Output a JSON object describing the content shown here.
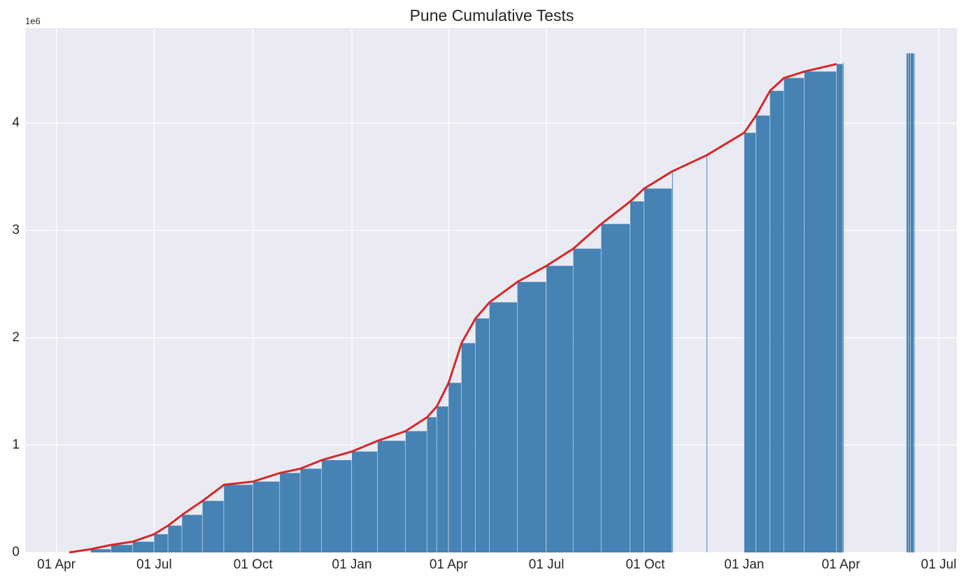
{
  "chart_data": {
    "type": "bar-line",
    "title": "Pune Cumulative Tests",
    "y_offset_label": "1e6",
    "bars": {
      "color": "#4682b4",
      "x": [
        12,
        32,
        51,
        71,
        91,
        104,
        117,
        136,
        156,
        183,
        208,
        227,
        247,
        275,
        299,
        325,
        345,
        354,
        365,
        377,
        390,
        403,
        429,
        456,
        481,
        507,
        534,
        547,
        573,
        605,
        640,
        651,
        664,
        677,
        696,
        726,
        732,
        791,
        793,
        795,
        798
      ],
      "values": [
        0.0,
        0.03,
        0.07,
        0.1,
        0.17,
        0.25,
        0.35,
        0.48,
        0.63,
        0.66,
        0.74,
        0.78,
        0.86,
        0.94,
        1.04,
        1.13,
        1.26,
        1.36,
        1.58,
        1.95,
        2.18,
        2.33,
        2.52,
        2.67,
        2.83,
        3.06,
        3.27,
        3.39,
        3.55,
        3.7,
        3.91,
        4.07,
        4.3,
        4.42,
        4.48,
        4.55,
        4.56,
        4.65,
        4.65,
        4.65,
        4.65
      ]
    },
    "line": {
      "color": "#d62728",
      "x": [
        12,
        32,
        51,
        71,
        91,
        104,
        117,
        136,
        156,
        183,
        208,
        227,
        247,
        275,
        299,
        325,
        345,
        354,
        365,
        377,
        390,
        403,
        429,
        456,
        481,
        507,
        534,
        547,
        573,
        605,
        640,
        651,
        664,
        677,
        696,
        726
      ],
      "values": [
        0.0,
        0.03,
        0.07,
        0.1,
        0.17,
        0.25,
        0.35,
        0.48,
        0.63,
        0.66,
        0.74,
        0.78,
        0.86,
        0.94,
        1.04,
        1.13,
        1.26,
        1.36,
        1.58,
        1.95,
        2.18,
        2.33,
        2.52,
        2.67,
        2.83,
        3.06,
        3.27,
        3.39,
        3.55,
        3.7,
        3.91,
        4.07,
        4.3,
        4.42,
        4.48,
        4.55
      ]
    },
    "xlim": [
      -29,
      838
    ],
    "xticks": [
      {
        "value": 0,
        "label": "01 Apr"
      },
      {
        "value": 91,
        "label": "01 Jul"
      },
      {
        "value": 183,
        "label": "01 Oct"
      },
      {
        "value": 275,
        "label": "01 Jan"
      },
      {
        "value": 365,
        "label": "01 Apr"
      },
      {
        "value": 456,
        "label": "01 Jul"
      },
      {
        "value": 548,
        "label": "01 Oct"
      },
      {
        "value": 640,
        "label": "01 Jan"
      },
      {
        "value": 730,
        "label": "01 Apr"
      },
      {
        "value": 821,
        "label": "01 Jul"
      }
    ],
    "ylim": [
      0,
      4.886
    ],
    "yticks": [
      0,
      1,
      2,
      3,
      4
    ],
    "grid": true
  }
}
